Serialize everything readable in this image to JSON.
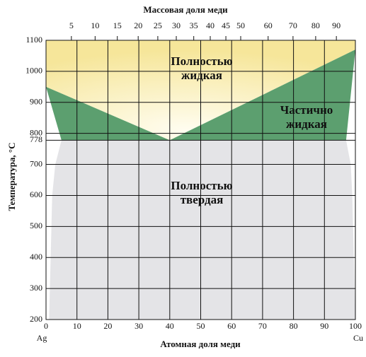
{
  "chart_data": {
    "type": "phase-diagram",
    "x_label": "Атомная доля меди",
    "x2_label": "Массовая доля меди",
    "y_label": "Температура, °C",
    "xlim": [
      0,
      100
    ],
    "ylim": [
      200,
      1100
    ],
    "xticks": [
      0,
      10,
      20,
      30,
      40,
      50,
      60,
      70,
      80,
      90,
      100
    ],
    "yticks": [
      200,
      300,
      400,
      500,
      600,
      700,
      778,
      800,
      900,
      1000,
      1100
    ],
    "x2ticks": [
      5,
      10,
      15,
      20,
      25,
      30,
      35,
      40,
      45,
      50,
      60,
      70,
      80,
      90
    ],
    "end_labels": [
      "Ag",
      "Cu"
    ],
    "grid": true,
    "regions": [
      {
        "label": [
          "Полностью",
          "жидкая"
        ],
        "color": "#f8eaa6",
        "points": {
          "x": [
            0,
            100,
            100,
            40,
            0
          ],
          "y": [
            1100,
            1100,
            1070,
            778,
            950
          ]
        }
      },
      {
        "label": [
          "Частично",
          "жидкая"
        ],
        "color": "#5c9f6f",
        "points": {
          "x": [
            0,
            40,
            100,
            97,
            5
          ],
          "y": [
            950,
            778,
            1070,
            778,
            778
          ]
        }
      },
      {
        "label": [
          "Полностью",
          "твердая"
        ],
        "color": "#e4e4e7",
        "points": {
          "x": [
            5,
            3,
            2,
            1.5,
            1,
            100,
            99.5,
            99,
            98.5,
            97
          ],
          "y": [
            778,
            700,
            600,
            400,
            200,
            200,
            400,
            600,
            700,
            778
          ]
        }
      }
    ]
  }
}
